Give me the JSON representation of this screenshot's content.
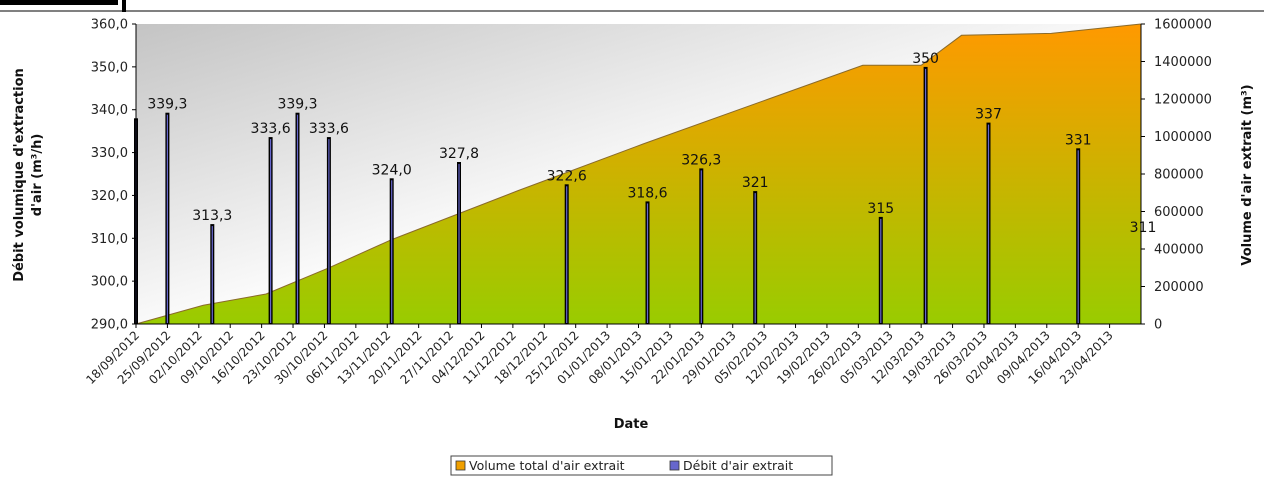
{
  "chart_data": {
    "type": "bar",
    "xlabel": "Date",
    "ylabel_left": "Débit volumique d'extraction d'air (m³/h)",
    "ylabel_left_lines": [
      "Débit volumique d'extraction",
      "d'air  (m³/h)"
    ],
    "ylabel_right": "Volume d'air extrait (m³)",
    "ylim_left": [
      290,
      360
    ],
    "ylim_right": [
      0,
      1600000
    ],
    "yticks_left": [
      "290,0",
      "300,0",
      "310,0",
      "320,0",
      "330,0",
      "340,0",
      "350,0",
      "360,0"
    ],
    "yticks_right": [
      "0",
      "200000",
      "400000",
      "600000",
      "800000",
      "1000000",
      "1200000",
      "1400000",
      "1600000"
    ],
    "x_range": [
      "2012-09-18",
      "2013-04-30"
    ],
    "x_ticks": [
      "18/09/2012",
      "25/09/2012",
      "02/10/2012",
      "09/10/2012",
      "16/10/2012",
      "23/10/2012",
      "30/10/2012",
      "06/11/2012",
      "13/11/2012",
      "20/11/2012",
      "27/11/2012",
      "04/12/2012",
      "11/12/2012",
      "18/12/2012",
      "25/12/2012",
      "01/01/2013",
      "08/01/2013",
      "15/01/2013",
      "22/01/2013",
      "29/01/2013",
      "05/02/2013",
      "12/02/2013",
      "19/02/2013",
      "26/02/2013",
      "05/03/2013",
      "12/03/2013",
      "19/03/2013",
      "26/03/2013",
      "02/04/2013",
      "09/04/2013",
      "16/04/2013",
      "23/04/2013"
    ],
    "grid": false,
    "legend_position": "bottom",
    "series": [
      {
        "name": "Volume total d'air extrait",
        "type": "area",
        "axis": "right",
        "color_top": "#ff9900",
        "color_bottom": "#99cc00",
        "x": [
          "2012-09-18",
          "2012-10-03",
          "2012-10-17",
          "2012-10-31",
          "2012-11-14",
          "2012-12-12",
          "2013-01-09",
          "2013-02-06",
          "2013-02-27",
          "2013-03-12",
          "2013-03-21",
          "2013-04-10",
          "2013-04-30"
        ],
        "values": [
          0,
          100000,
          160000,
          300000,
          450000,
          710000,
          960000,
          1200000,
          1380000,
          1380000,
          1540000,
          1550000,
          1760000
        ]
      },
      {
        "name": "Débit d'air extrait",
        "type": "bar",
        "axis": "left",
        "color": "#6666cc",
        "x": [
          "2012-09-18",
          "2012-09-25",
          "2012-10-05",
          "2012-10-18",
          "2012-10-24",
          "2012-10-31",
          "2012-11-14",
          "2012-11-29",
          "2012-12-23",
          "2013-01-10",
          "2013-01-22",
          "2013-02-03",
          "2013-03-03",
          "2013-03-13",
          "2013-03-27",
          "2013-04-16"
        ],
        "values": [
          338,
          339.3,
          313.3,
          333.6,
          339.3,
          333.6,
          324.0,
          327.8,
          322.6,
          318.6,
          326.3,
          321,
          315,
          350,
          337,
          331
        ],
        "labels": [
          "",
          "339,3",
          "313,3",
          "333,6",
          "339,3",
          "333,6",
          "324,0",
          "327,8",
          "322,6",
          "318,6",
          "326,3",
          "321",
          "315",
          "350",
          "337",
          "331"
        ]
      }
    ],
    "extra_labels": [
      "311"
    ]
  }
}
